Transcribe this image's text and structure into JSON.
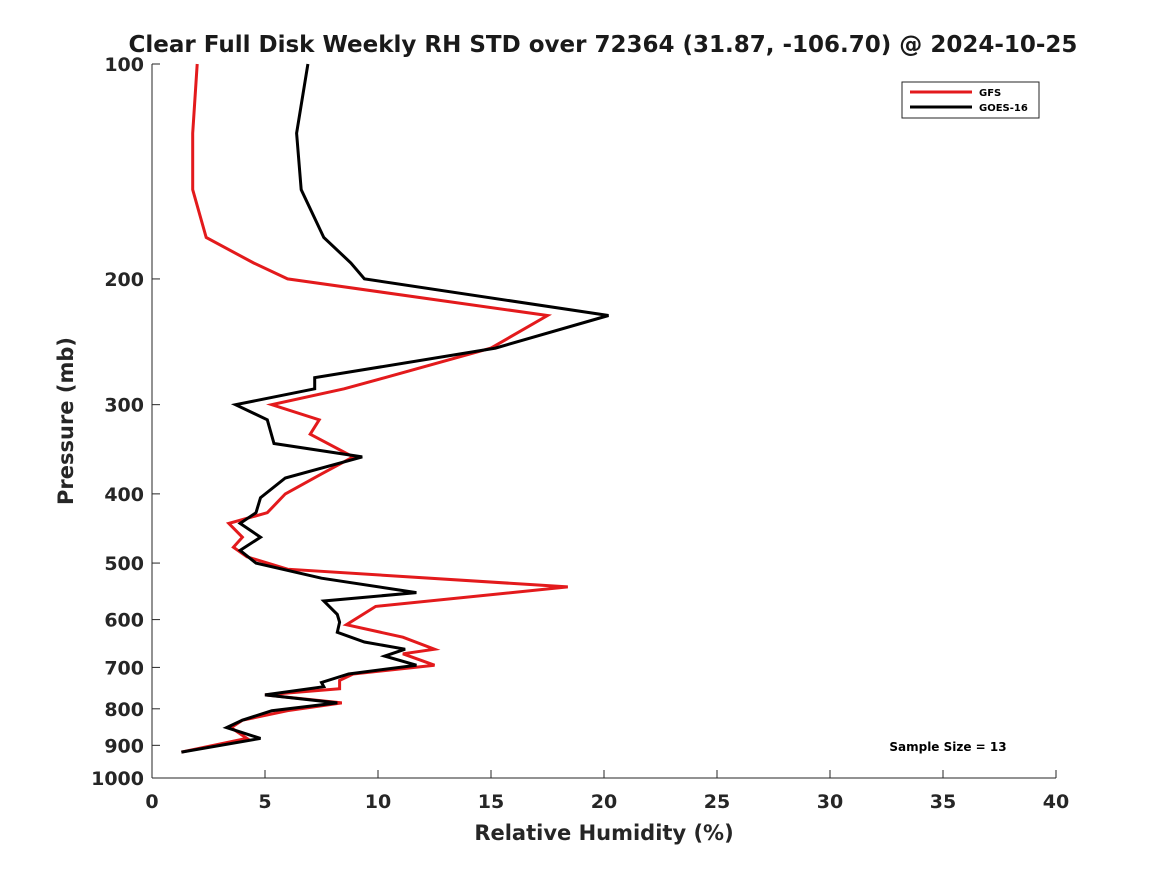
{
  "chart_data": {
    "type": "line",
    "title": "Clear Full Disk Weekly RH STD over 72364 (31.87, -106.70) @ 2024-10-25",
    "xlabel": "Relative Humidity (%)",
    "ylabel": "Pressure (mb)",
    "xlim": [
      0,
      40
    ],
    "ylim": [
      100,
      1000
    ],
    "y_scale": "log",
    "y_reversed": true,
    "grid": false,
    "legend_position": "top-right",
    "xticks": [
      "0",
      "5",
      "10",
      "15",
      "20",
      "25",
      "30",
      "35",
      "40"
    ],
    "yticks": [
      "100",
      "200",
      "300",
      "400",
      "500",
      "600",
      "700",
      "800",
      "900",
      "1000"
    ],
    "annotation": "Sample Size = 13",
    "series": [
      {
        "name": "GFS",
        "color": "#e31a1c",
        "points": [
          [
            2.0,
            100
          ],
          [
            1.8,
            125
          ],
          [
            1.8,
            150
          ],
          [
            2.4,
            175
          ],
          [
            4.5,
            190
          ],
          [
            6.0,
            200
          ],
          [
            17.5,
            225
          ],
          [
            15.0,
            250
          ],
          [
            10.3,
            275
          ],
          [
            8.5,
            285
          ],
          [
            5.3,
            300
          ],
          [
            7.4,
            315
          ],
          [
            7.0,
            330
          ],
          [
            8.9,
            355
          ],
          [
            7.5,
            375
          ],
          [
            5.9,
            400
          ],
          [
            5.1,
            425
          ],
          [
            3.4,
            440
          ],
          [
            4.0,
            460
          ],
          [
            3.6,
            475
          ],
          [
            4.2,
            490
          ],
          [
            6.0,
            510
          ],
          [
            18.4,
            540
          ],
          [
            9.9,
            575
          ],
          [
            8.6,
            610
          ],
          [
            11.1,
            635
          ],
          [
            12.5,
            660
          ],
          [
            11.1,
            670
          ],
          [
            12.5,
            695
          ],
          [
            8.9,
            715
          ],
          [
            8.3,
            730
          ],
          [
            8.3,
            750
          ],
          [
            5.0,
            765
          ],
          [
            8.4,
            785
          ],
          [
            6.0,
            805
          ],
          [
            4.0,
            830
          ],
          [
            3.5,
            850
          ],
          [
            4.2,
            880
          ],
          [
            1.3,
            920
          ]
        ]
      },
      {
        "name": "GOES-16",
        "color": "#000000",
        "points": [
          [
            6.9,
            100
          ],
          [
            6.4,
            125
          ],
          [
            6.6,
            150
          ],
          [
            7.6,
            175
          ],
          [
            8.8,
            190
          ],
          [
            9.4,
            200
          ],
          [
            20.2,
            225
          ],
          [
            15.2,
            250
          ],
          [
            7.2,
            275
          ],
          [
            7.2,
            285
          ],
          [
            3.7,
            300
          ],
          [
            5.1,
            315
          ],
          [
            5.4,
            340
          ],
          [
            9.3,
            355
          ],
          [
            5.9,
            380
          ],
          [
            4.8,
            405
          ],
          [
            4.6,
            425
          ],
          [
            3.9,
            440
          ],
          [
            4.8,
            460
          ],
          [
            3.9,
            480
          ],
          [
            4.6,
            500
          ],
          [
            7.5,
            525
          ],
          [
            11.7,
            550
          ],
          [
            7.6,
            565
          ],
          [
            8.2,
            590
          ],
          [
            8.3,
            605
          ],
          [
            8.2,
            625
          ],
          [
            9.4,
            645
          ],
          [
            11.2,
            660
          ],
          [
            10.3,
            675
          ],
          [
            11.7,
            695
          ],
          [
            8.7,
            715
          ],
          [
            7.5,
            735
          ],
          [
            7.6,
            745
          ],
          [
            5.0,
            765
          ],
          [
            8.2,
            785
          ],
          [
            5.3,
            805
          ],
          [
            4.0,
            830
          ],
          [
            3.3,
            850
          ],
          [
            4.8,
            880
          ],
          [
            1.3,
            920
          ]
        ]
      }
    ]
  }
}
